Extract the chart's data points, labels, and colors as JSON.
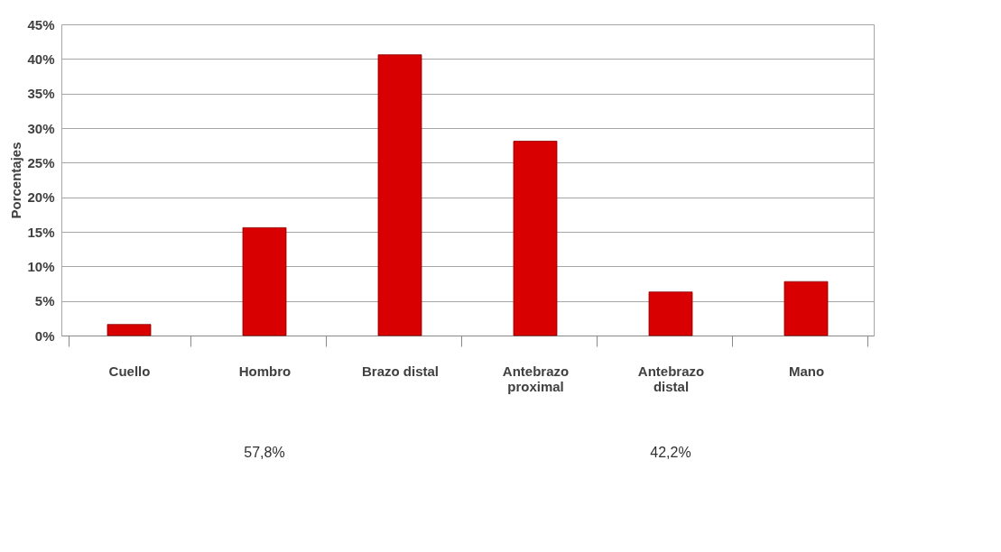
{
  "chart_data": {
    "type": "bar",
    "ylabel": "Porcentajes",
    "categories": [
      "Cuello",
      "Hombro",
      "Brazo distal",
      "Antebrazo proximal",
      "Antebrazo distal",
      "Mano"
    ],
    "values": [
      1.6,
      15.6,
      40.6,
      28.1,
      6.3,
      7.8
    ],
    "color": "#d80000",
    "ylim": [
      0,
      45
    ],
    "yticks": [
      {
        "value": 0,
        "label": "0%"
      },
      {
        "value": 5,
        "label": "5%"
      },
      {
        "value": 10,
        "label": "10%"
      },
      {
        "value": 15,
        "label": "15%"
      },
      {
        "value": 20,
        "label": "20%"
      },
      {
        "value": 25,
        "label": "25%"
      },
      {
        "value": 30,
        "label": "30%"
      },
      {
        "value": 35,
        "label": "35%"
      },
      {
        "value": 40,
        "label": "40%"
      },
      {
        "value": 45,
        "label": "45%"
      }
    ],
    "grid": "y",
    "annotations": [
      "57,8%",
      "42,2%"
    ]
  }
}
